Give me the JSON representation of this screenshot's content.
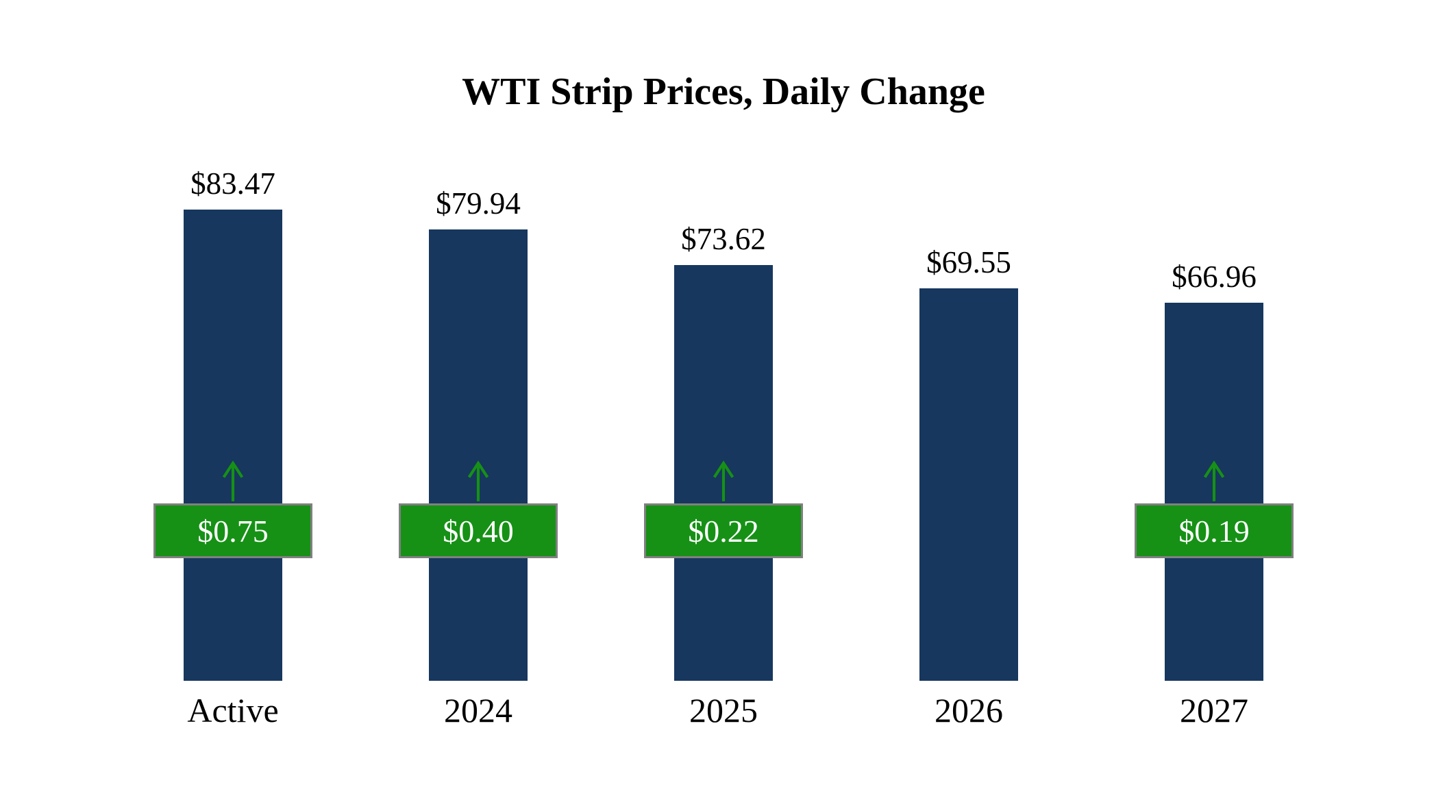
{
  "page": {
    "background": "#ffffff"
  },
  "chart_data": {
    "type": "bar",
    "title": "WTI Strip Prices, Daily Change",
    "categories": [
      "Active",
      "2024",
      "2025",
      "2026",
      "2027"
    ],
    "values": [
      83.47,
      79.94,
      73.62,
      69.55,
      66.96
    ],
    "value_labels": [
      "$83.47",
      "$79.94",
      "$73.62",
      "$69.55",
      "$66.96"
    ],
    "daily_changes": [
      0.75,
      0.4,
      0.22,
      null,
      0.19
    ],
    "change_labels": [
      "$0.75",
      "$0.40",
      "$0.22",
      "",
      "$0.19"
    ],
    "change_directions": [
      "up",
      "up",
      "up",
      "none",
      "up"
    ],
    "xlabel": "",
    "ylabel": "",
    "ylim": [
      0,
      85
    ],
    "grid": false,
    "legend_position": "none",
    "colors": {
      "bar": "#17375e",
      "badge": "#169116",
      "badge_border": "#808080",
      "badge_text": "#ffffff",
      "arrow": "#169116",
      "text": "#000000"
    },
    "points": [
      {
        "category": "Active",
        "value": 83.47,
        "value_label": "$83.47",
        "change": 0.75,
        "change_label": "$0.75",
        "has_change": true
      },
      {
        "category": "2024",
        "value": 79.94,
        "value_label": "$79.94",
        "change": 0.4,
        "change_label": "$0.40",
        "has_change": true
      },
      {
        "category": "2025",
        "value": 73.62,
        "value_label": "$73.62",
        "change": 0.22,
        "change_label": "$0.22",
        "has_change": true
      },
      {
        "category": "2026",
        "value": 69.55,
        "value_label": "$69.55",
        "change": null,
        "change_label": "",
        "has_change": false
      },
      {
        "category": "2027",
        "value": 66.96,
        "value_label": "$66.96",
        "change": 0.19,
        "change_label": "$0.19",
        "has_change": true
      }
    ]
  }
}
